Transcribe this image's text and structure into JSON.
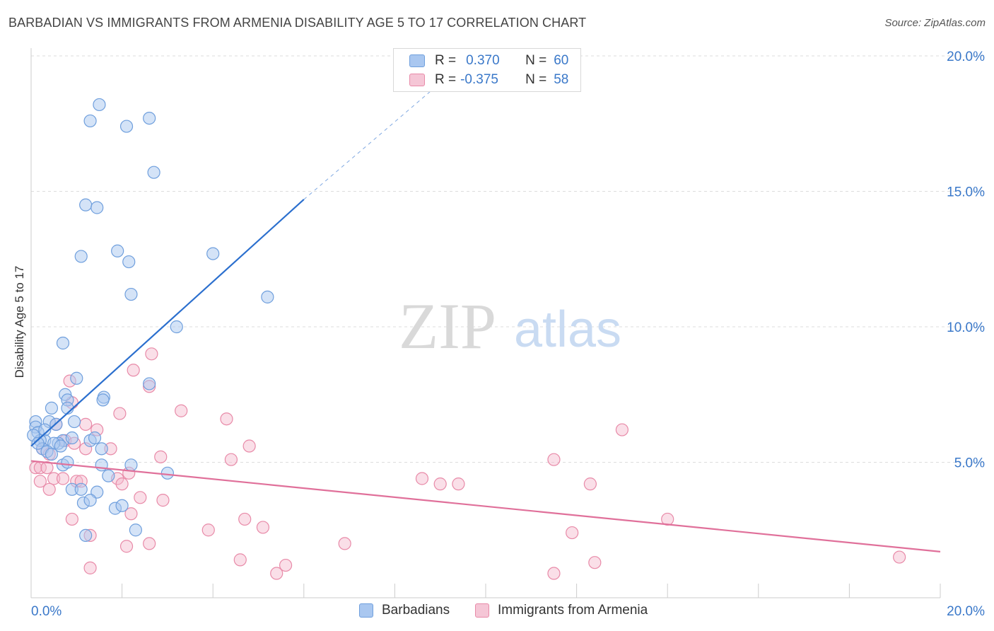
{
  "header": {
    "title": "BARBADIAN VS IMMIGRANTS FROM ARMENIA DISABILITY AGE 5 TO 17 CORRELATION CHART",
    "source": "Source: ZipAtlas.com"
  },
  "watermark": {
    "zip": "ZIP",
    "atlas": "atlas"
  },
  "legend": {
    "r_label": "R =",
    "n_label": "N =",
    "series": [
      {
        "name": "Barbadians",
        "r": "0.370",
        "n": "60"
      },
      {
        "name": "Immigrants from Armenia",
        "r": "-0.375",
        "n": "58"
      }
    ]
  },
  "colors": {
    "blue_fill": "#a9c7f0",
    "blue_stroke": "#6f9fdd",
    "blue_line": "#2b6fce",
    "pink_fill": "#f5b9cc",
    "pink_stroke": "#e88aa8",
    "pink_line": "#e0709a",
    "value_text": "#3a78c9",
    "grid": "#dddddd"
  },
  "chart_data": {
    "type": "scatter",
    "title": "BARBADIAN VS IMMIGRANTS FROM ARMENIA DISABILITY AGE 5 TO 17 CORRELATION CHART",
    "xlabel": "",
    "ylabel": "Disability Age 5 to 17",
    "xlim": [
      0,
      20
    ],
    "ylim": [
      0,
      20
    ],
    "x_tick_labels": [
      "0.0%",
      "20.0%"
    ],
    "y_ticks": [
      5,
      10,
      15,
      20
    ],
    "y_tick_labels": [
      "5.0%",
      "10.0%",
      "15.0%",
      "20.0%"
    ],
    "grid": true,
    "legend_position": "top-center",
    "series": [
      {
        "name": "Barbadians",
        "points": [
          [
            1.5,
            18.2
          ],
          [
            1.3,
            17.6
          ],
          [
            2.1,
            17.4
          ],
          [
            2.6,
            17.7
          ],
          [
            2.7,
            15.7
          ],
          [
            1.2,
            14.5
          ],
          [
            1.45,
            14.4
          ],
          [
            1.1,
            12.6
          ],
          [
            1.9,
            12.8
          ],
          [
            2.15,
            12.4
          ],
          [
            4.0,
            12.7
          ],
          [
            2.2,
            11.2
          ],
          [
            5.2,
            11.1
          ],
          [
            3.2,
            10.0
          ],
          [
            0.7,
            9.4
          ],
          [
            1.0,
            8.1
          ],
          [
            2.6,
            7.9
          ],
          [
            0.75,
            7.5
          ],
          [
            1.6,
            7.4
          ],
          [
            1.58,
            7.3
          ],
          [
            0.8,
            7.3
          ],
          [
            0.8,
            7.0
          ],
          [
            0.45,
            7.0
          ],
          [
            0.1,
            6.5
          ],
          [
            0.1,
            6.3
          ],
          [
            0.15,
            6.1
          ],
          [
            0.4,
            6.5
          ],
          [
            0.55,
            6.4
          ],
          [
            0.95,
            6.5
          ],
          [
            0.7,
            5.8
          ],
          [
            0.3,
            5.8
          ],
          [
            0.2,
            5.8
          ],
          [
            0.6,
            5.7
          ],
          [
            0.5,
            5.7
          ],
          [
            0.9,
            5.9
          ],
          [
            1.3,
            5.8
          ],
          [
            1.4,
            5.9
          ],
          [
            0.25,
            5.5
          ],
          [
            0.35,
            5.4
          ],
          [
            0.45,
            5.3
          ],
          [
            1.55,
            5.5
          ],
          [
            0.7,
            4.9
          ],
          [
            0.8,
            5.0
          ],
          [
            1.55,
            4.9
          ],
          [
            2.2,
            4.9
          ],
          [
            3.0,
            4.6
          ],
          [
            1.7,
            4.5
          ],
          [
            0.9,
            4.0
          ],
          [
            1.1,
            4.0
          ],
          [
            1.45,
            3.9
          ],
          [
            1.15,
            3.5
          ],
          [
            1.3,
            3.6
          ],
          [
            1.85,
            3.3
          ],
          [
            2.0,
            3.4
          ],
          [
            1.2,
            2.3
          ],
          [
            2.3,
            2.5
          ],
          [
            0.05,
            6.0
          ],
          [
            0.65,
            5.6
          ],
          [
            0.15,
            5.7
          ],
          [
            0.3,
            6.2
          ]
        ],
        "trendline": {
          "x": [
            0,
            6
          ],
          "y": [
            5.6,
            14.7
          ],
          "dashed_extension_to": [
            9.0,
            19.0
          ]
        }
      },
      {
        "name": "Immigrants from Armenia",
        "points": [
          [
            2.65,
            9.0
          ],
          [
            2.25,
            8.4
          ],
          [
            0.85,
            8.0
          ],
          [
            2.6,
            7.8
          ],
          [
            0.9,
            7.2
          ],
          [
            3.3,
            6.9
          ],
          [
            1.95,
            6.8
          ],
          [
            4.3,
            6.6
          ],
          [
            0.55,
            6.4
          ],
          [
            1.2,
            6.4
          ],
          [
            1.45,
            6.2
          ],
          [
            13.0,
            6.2
          ],
          [
            0.75,
            5.8
          ],
          [
            0.95,
            5.7
          ],
          [
            4.8,
            5.6
          ],
          [
            1.2,
            5.5
          ],
          [
            1.75,
            5.5
          ],
          [
            0.25,
            5.5
          ],
          [
            0.4,
            5.3
          ],
          [
            2.85,
            5.2
          ],
          [
            4.4,
            5.1
          ],
          [
            11.5,
            5.1
          ],
          [
            0.1,
            4.8
          ],
          [
            0.2,
            4.8
          ],
          [
            0.35,
            4.8
          ],
          [
            2.15,
            4.6
          ],
          [
            1.9,
            4.4
          ],
          [
            0.5,
            4.4
          ],
          [
            0.7,
            4.4
          ],
          [
            1.0,
            4.3
          ],
          [
            1.1,
            4.3
          ],
          [
            8.6,
            4.4
          ],
          [
            9.0,
            4.2
          ],
          [
            9.4,
            4.2
          ],
          [
            12.3,
            4.2
          ],
          [
            2.0,
            4.2
          ],
          [
            0.2,
            4.3
          ],
          [
            0.4,
            4.0
          ],
          [
            2.4,
            3.7
          ],
          [
            2.9,
            3.6
          ],
          [
            2.2,
            3.1
          ],
          [
            0.9,
            2.9
          ],
          [
            4.7,
            2.9
          ],
          [
            5.1,
            2.6
          ],
          [
            14.0,
            2.9
          ],
          [
            3.9,
            2.5
          ],
          [
            1.3,
            2.3
          ],
          [
            11.9,
            2.4
          ],
          [
            6.9,
            2.0
          ],
          [
            2.1,
            1.9
          ],
          [
            2.6,
            2.0
          ],
          [
            4.6,
            1.4
          ],
          [
            5.6,
            1.2
          ],
          [
            12.4,
            1.3
          ],
          [
            1.3,
            1.1
          ],
          [
            5.4,
            0.9
          ],
          [
            11.5,
            0.9
          ],
          [
            19.1,
            1.5
          ]
        ],
        "trendline": {
          "x": [
            0,
            20
          ],
          "y": [
            5.05,
            1.7
          ]
        }
      }
    ]
  }
}
